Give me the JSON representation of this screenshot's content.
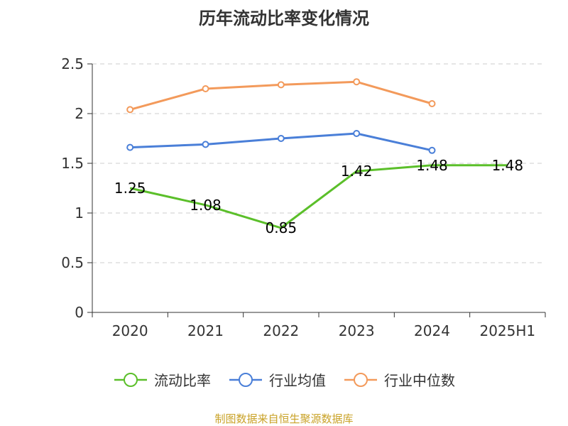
{
  "chart_data": {
    "type": "line",
    "title": "历年流动比率变化情况",
    "categories": [
      "2020",
      "2021",
      "2022",
      "2023",
      "2024",
      "2025H1"
    ],
    "ylim": [
      0,
      2.5
    ],
    "yticks": [
      "0",
      "0.5",
      "1",
      "1.5",
      "2",
      "2.5"
    ],
    "ytick_values": [
      0,
      0.5,
      1,
      1.5,
      2,
      2.5
    ],
    "grid": true,
    "legend_position": "bottom",
    "series": [
      {
        "name": "流动比率",
        "color": "#5bbf2a",
        "values": [
          1.25,
          1.08,
          0.85,
          1.42,
          1.48,
          1.48
        ],
        "labels": [
          "1.25",
          "1.08",
          "0.85",
          "1.42",
          "1.48",
          "1.48"
        ],
        "show_markers": false
      },
      {
        "name": "行业均值",
        "color": "#4a7fd8",
        "values": [
          1.66,
          1.69,
          1.75,
          1.8,
          1.63,
          null
        ],
        "show_markers": true
      },
      {
        "name": "行业中位数",
        "color": "#f39a5b",
        "values": [
          2.04,
          2.25,
          2.29,
          2.32,
          2.1,
          null
        ],
        "show_markers": true
      }
    ]
  },
  "footer": {
    "source": "制图数据来自恒生聚源数据库"
  }
}
